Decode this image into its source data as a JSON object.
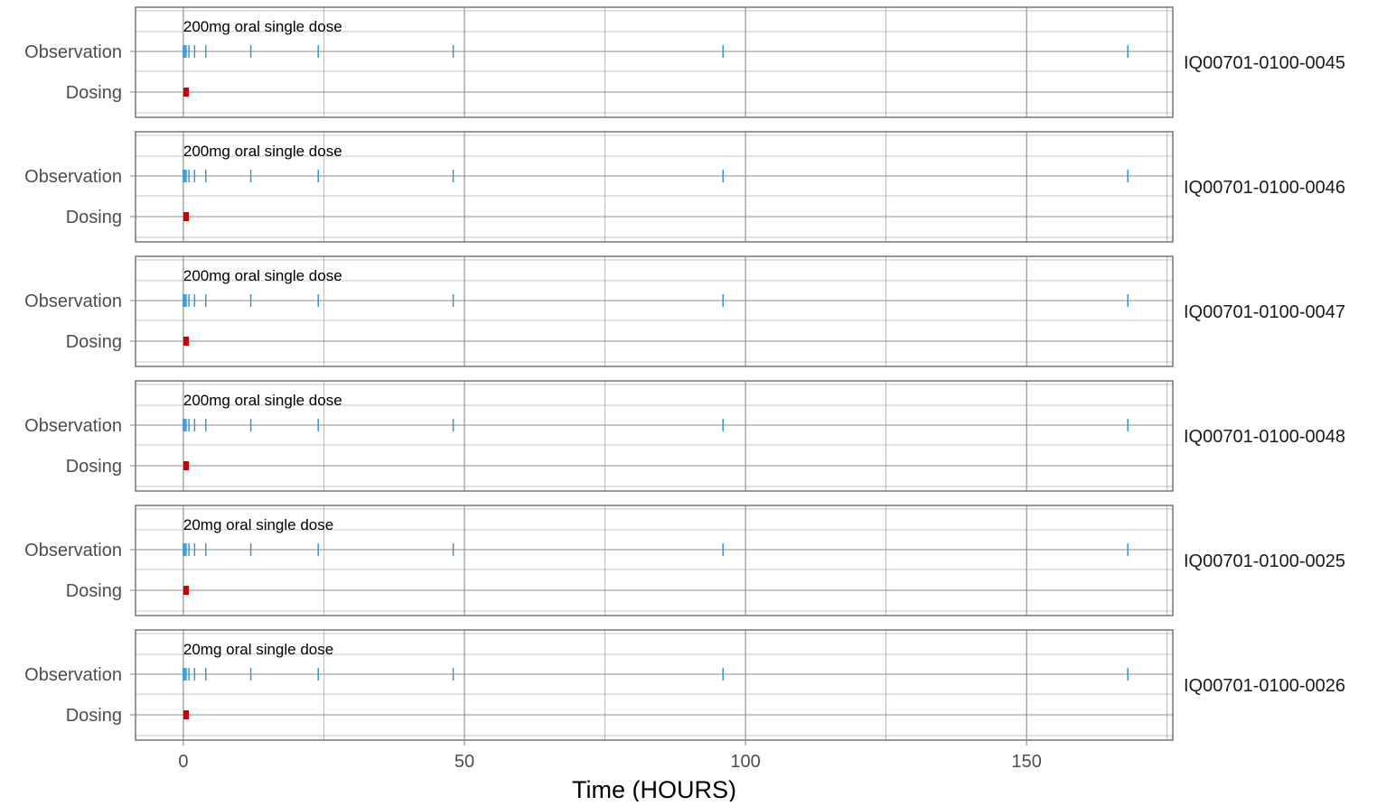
{
  "chart_data": {
    "type": "scatter",
    "xlabel": "Time (HOURS)",
    "xlim": [
      -8.5,
      176
    ],
    "x_ticks": [
      0,
      50,
      100,
      150
    ],
    "x_tick_labels": [
      "0",
      "50",
      "100",
      "150"
    ],
    "y_categories": [
      "Observation",
      "Dosing"
    ],
    "grid": true,
    "colors": {
      "observation": "#3a95cf",
      "dosing": "#cc0000",
      "grid": "#8c8c8c",
      "text": "#4d4d4d"
    },
    "panels": [
      {
        "id": "IQ00701-0100-0045",
        "annotation": "200mg oral single dose",
        "observation_times": [
          0,
          0.25,
          0.5,
          1,
          2,
          4,
          12,
          24,
          48,
          96,
          168
        ],
        "dosing_times": [
          0.5
        ]
      },
      {
        "id": "IQ00701-0100-0046",
        "annotation": "200mg oral single dose",
        "observation_times": [
          0,
          0.25,
          0.5,
          1,
          2,
          4,
          12,
          24,
          48,
          96,
          168
        ],
        "dosing_times": [
          0.5
        ]
      },
      {
        "id": "IQ00701-0100-0047",
        "annotation": "200mg oral single dose",
        "observation_times": [
          0,
          0.25,
          0.5,
          1,
          2,
          4,
          12,
          24,
          48,
          96,
          168
        ],
        "dosing_times": [
          0.5
        ]
      },
      {
        "id": "IQ00701-0100-0048",
        "annotation": "200mg oral single dose",
        "observation_times": [
          0,
          0.25,
          0.5,
          1,
          2,
          4,
          12,
          24,
          48,
          96,
          168
        ],
        "dosing_times": [
          0.5
        ]
      },
      {
        "id": "IQ00701-0100-0025",
        "annotation": "20mg oral single dose",
        "observation_times": [
          0,
          0.25,
          0.5,
          1,
          2,
          4,
          12,
          24,
          48,
          96,
          168
        ],
        "dosing_times": [
          0.5
        ]
      },
      {
        "id": "IQ00701-0100-0026",
        "annotation": "20mg oral single dose",
        "observation_times": [
          0,
          0.25,
          0.5,
          1,
          2,
          4,
          12,
          24,
          48,
          96,
          168
        ],
        "dosing_times": [
          0.5
        ]
      }
    ]
  }
}
